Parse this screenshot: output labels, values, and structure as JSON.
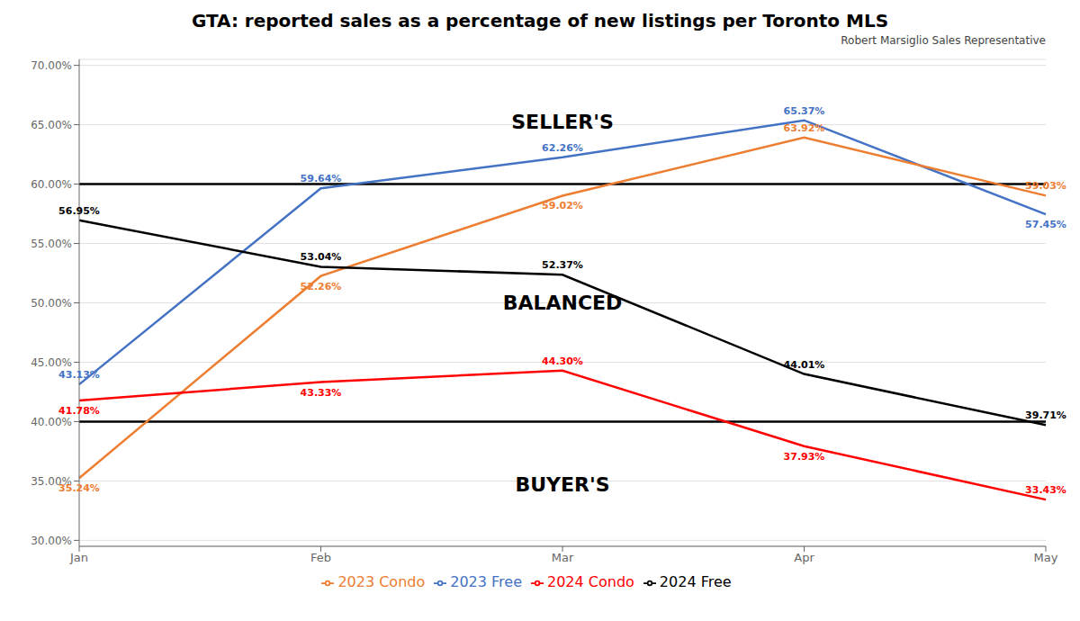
{
  "chart_data": {
    "type": "line",
    "title": "GTA: reported sales as a percentage of new listings per Toronto MLS",
    "annotations": [
      {
        "text": "SELLER'S"
      },
      {
        "text": "BALANCED"
      },
      {
        "text": "BUYER'S"
      },
      {
        "text": "Robert Marsiglio Sales Representative"
      }
    ],
    "categories": [
      "Jan",
      "Feb",
      "Mar",
      "Apr",
      "May"
    ],
    "series": [
      {
        "name": "2023 Free",
        "color": "#4472C4",
        "values": [
          43.13,
          59.64,
          62.26,
          65.37,
          57.45
        ],
        "value_labels": [
          "43.13%",
          "59.64%",
          "62.26%",
          "65.37%",
          "57.45%"
        ]
      },
      {
        "name": "2023 Condo",
        "color": "#ED7D31",
        "values": [
          35.24,
          52.26,
          59.02,
          63.92,
          59.03
        ],
        "value_labels": [
          "35.24%",
          "52.26%",
          "59.02%",
          "63.92%",
          "59.03%"
        ]
      },
      {
        "name": "2024 Free",
        "color": "#000000",
        "values": [
          56.95,
          53.04,
          52.37,
          44.01,
          39.71
        ],
        "value_labels": [
          "56.95%",
          "53.04%",
          "52.37%",
          "44.01%",
          "39.71%"
        ]
      },
      {
        "name": "2024 Condo",
        "color": "#FF0000",
        "values": [
          41.78,
          43.33,
          44.3,
          37.93,
          33.43
        ],
        "value_labels": [
          "41.78%",
          "43.33%",
          "44.30%",
          "37.93%",
          "33.43%"
        ]
      }
    ],
    "hlines": [
      {
        "y": 60.0,
        "color": "#000000"
      },
      {
        "y": 40.0,
        "color": "#000000"
      }
    ],
    "ylim": [
      29.5,
      70.5
    ],
    "yticks": [
      {
        "value": 30.0,
        "label": "30.00%"
      },
      {
        "value": 35.0,
        "label": "35.00%"
      },
      {
        "value": 40.0,
        "label": "40.00%"
      },
      {
        "value": 45.0,
        "label": "45.00%"
      },
      {
        "value": 50.0,
        "label": "50.00%"
      },
      {
        "value": 55.0,
        "label": "55.00%"
      },
      {
        "value": 60.0,
        "label": "60.00%"
      },
      {
        "value": 65.0,
        "label": "65.00%"
      },
      {
        "value": 70.0,
        "label": "70.00%"
      }
    ],
    "grid": true,
    "data_labels": true,
    "legend": "bottom"
  }
}
